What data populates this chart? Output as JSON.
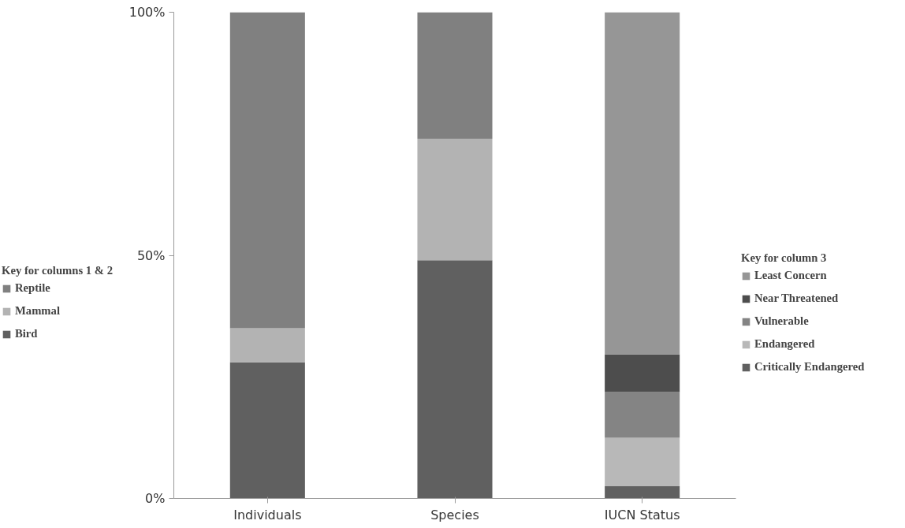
{
  "chart_data": {
    "type": "bar",
    "stacked": true,
    "categories": [
      "Individuals",
      "Species",
      "IUCN Status"
    ],
    "series": [
      {
        "name": "Bird",
        "color": "#606060",
        "values": [
          28,
          49,
          null
        ]
      },
      {
        "name": "Mammal",
        "color": "#b3b3b3",
        "values": [
          7,
          25,
          null
        ]
      },
      {
        "name": "Reptile",
        "color": "#808080",
        "values": [
          65,
          26,
          null
        ]
      },
      {
        "name": "Critically Endangered",
        "color": "#606060",
        "values": [
          null,
          null,
          2.5
        ]
      },
      {
        "name": "Endangered",
        "color": "#b8b8b8",
        "values": [
          null,
          null,
          10
        ]
      },
      {
        "name": "Vulnerable",
        "color": "#848484",
        "values": [
          null,
          null,
          9.4
        ]
      },
      {
        "name": "Near Threatened",
        "color": "#4d4d4d",
        "values": [
          null,
          null,
          7.7
        ]
      },
      {
        "name": "Least Concern",
        "color": "#969696",
        "values": [
          null,
          null,
          70.4
        ]
      }
    ],
    "ylim": [
      0,
      100
    ],
    "yticks": [
      {
        "value": 0,
        "label": "0%"
      },
      {
        "value": 50,
        "label": "50%"
      },
      {
        "value": 100,
        "label": "100%"
      }
    ],
    "grid": false,
    "legend": "left",
    "annotations": [
      "Key for columns 1 & 2",
      "Key for column 3"
    ]
  }
}
